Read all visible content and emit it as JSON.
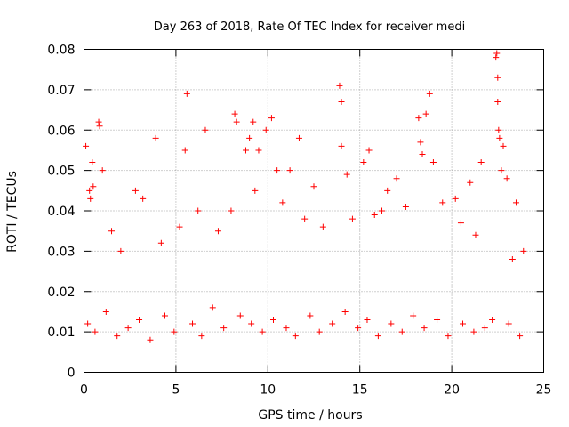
{
  "chart_data": {
    "type": "scatter",
    "title": "Day 263 of 2018, Rate Of TEC Index for receiver medi",
    "xlabel": "GPS time / hours",
    "ylabel": "ROTI / TECUs",
    "xlim": [
      0,
      25
    ],
    "ylim": [
      0,
      0.08
    ],
    "xticks": [
      0,
      5,
      10,
      15,
      20,
      25
    ],
    "yticks": [
      0,
      0.01,
      0.02,
      0.03,
      0.04,
      0.05,
      0.06,
      0.07,
      0.08
    ],
    "xtick_labels": [
      "0",
      "5",
      "10",
      "15",
      "20",
      "25"
    ],
    "ytick_labels": [
      "0",
      "0.01",
      "0.02",
      "0.03",
      "0.04",
      "0.05",
      "0.06",
      "0.07",
      "0.08"
    ],
    "grid": true,
    "marker": "plus",
    "color": "#ff0000",
    "series": [
      {
        "x": [
          0.1,
          0.3,
          0.35,
          0.45,
          0.5,
          0.8,
          0.85,
          1.0,
          2.8,
          3.2,
          3.9,
          5.5,
          5.6,
          6.6,
          8.2,
          8.3,
          8.8,
          9.0,
          9.2,
          9.5,
          9.9,
          10.2,
          10.5,
          11.2,
          11.7,
          12.5,
          13.9,
          14.0,
          14.0,
          14.3,
          15.2,
          15.5,
          16.5,
          17.0,
          18.2,
          18.3,
          18.4,
          18.6,
          18.8,
          19.0,
          20.2,
          21.0,
          21.6,
          22.4,
          22.45,
          22.5,
          22.5,
          22.55,
          22.6,
          22.7,
          22.8,
          23.0,
          23.5,
          23.9,
          1.5,
          2.0,
          4.2,
          5.2,
          6.2,
          7.3,
          8.0,
          9.3,
          10.8,
          12.0,
          13.0,
          14.6,
          15.8,
          16.2,
          17.5,
          19.5,
          20.5,
          21.3,
          23.3,
          0.2,
          0.6,
          1.2,
          1.8,
          2.4,
          3.0,
          3.6,
          4.4,
          4.9,
          5.9,
          6.4,
          7.0,
          7.6,
          8.5,
          9.1,
          9.7,
          10.3,
          11.0,
          11.5,
          12.3,
          12.8,
          13.5,
          14.2,
          14.9,
          15.4,
          16.0,
          16.7,
          17.3,
          17.9,
          18.5,
          19.2,
          19.8,
          20.6,
          21.2,
          21.8,
          22.2,
          23.1,
          23.7
        ],
        "y": [
          0.056,
          0.045,
          0.043,
          0.052,
          0.046,
          0.062,
          0.061,
          0.05,
          0.045,
          0.043,
          0.058,
          0.055,
          0.069,
          0.06,
          0.064,
          0.062,
          0.055,
          0.058,
          0.062,
          0.055,
          0.06,
          0.063,
          0.05,
          0.05,
          0.058,
          0.046,
          0.071,
          0.067,
          0.056,
          0.049,
          0.052,
          0.055,
          0.045,
          0.048,
          0.063,
          0.057,
          0.054,
          0.064,
          0.069,
          0.052,
          0.043,
          0.047,
          0.052,
          0.078,
          0.079,
          0.073,
          0.067,
          0.06,
          0.058,
          0.05,
          0.056,
          0.048,
          0.042,
          0.03,
          0.035,
          0.03,
          0.032,
          0.036,
          0.04,
          0.035,
          0.04,
          0.045,
          0.042,
          0.038,
          0.036,
          0.038,
          0.039,
          0.04,
          0.041,
          0.042,
          0.037,
          0.034,
          0.028,
          0.012,
          0.01,
          0.015,
          0.009,
          0.011,
          0.013,
          0.008,
          0.014,
          0.01,
          0.012,
          0.009,
          0.016,
          0.011,
          0.014,
          0.012,
          0.01,
          0.013,
          0.011,
          0.009,
          0.014,
          0.01,
          0.012,
          0.015,
          0.011,
          0.013,
          0.009,
          0.012,
          0.01,
          0.014,
          0.011,
          0.013,
          0.009,
          0.012,
          0.01,
          0.011,
          0.013,
          0.012,
          0.009
        ]
      }
    ]
  }
}
